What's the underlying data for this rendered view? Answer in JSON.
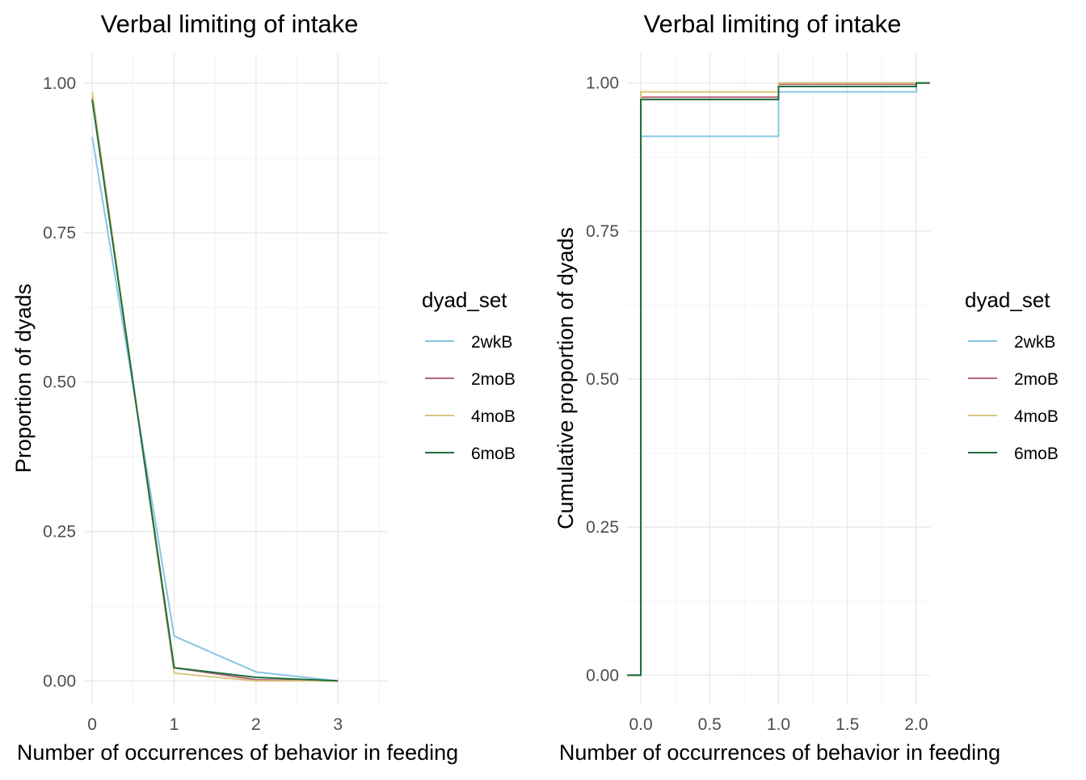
{
  "chart_data": [
    {
      "type": "line",
      "title": "Verbal limiting of intake",
      "xlabel": "Number of occurrences of behavior in feeding",
      "ylabel": "Proportion of dyads",
      "xlim": [
        -0.1,
        3.6
      ],
      "ylim": [
        -0.04,
        1.05
      ],
      "x_ticks": [
        0,
        1,
        2,
        3
      ],
      "y_ticks": [
        0.0,
        0.25,
        0.5,
        0.75,
        1.0
      ],
      "x_tick_labels": [
        "0",
        "1",
        "2",
        "3"
      ],
      "y_tick_labels": [
        "0.00",
        "0.25",
        "0.50",
        "0.75",
        "1.00"
      ],
      "grid": true,
      "legend": {
        "title": "dyad_set",
        "position": "right"
      },
      "x": [
        0,
        1,
        2,
        3
      ],
      "series": [
        {
          "name": "2wkB",
          "color": "#87c6e3",
          "values": [
            0.91,
            0.075,
            0.015,
            0.0
          ]
        },
        {
          "name": "2moB",
          "color": "#b5647a",
          "values": [
            0.976,
            0.022,
            0.002,
            0.0
          ]
        },
        {
          "name": "4moB",
          "color": "#dcc47e",
          "values": [
            0.985,
            0.013,
            0.0,
            0.0
          ]
        },
        {
          "name": "6moB",
          "color": "#1e6e3c",
          "values": [
            0.972,
            0.022,
            0.006,
            0.0
          ]
        }
      ]
    },
    {
      "type": "line",
      "step": true,
      "title": "Verbal limiting of intake",
      "xlabel": "Number of occurrences of behavior in feeding",
      "ylabel": "Cumulative proportion of dyads",
      "xlim": [
        -0.1,
        2.1
      ],
      "ylim": [
        -0.05,
        1.05
      ],
      "x_ticks": [
        0.0,
        0.5,
        1.0,
        1.5,
        2.0
      ],
      "y_ticks": [
        0.0,
        0.25,
        0.5,
        0.75,
        1.0
      ],
      "x_tick_labels": [
        "0.0",
        "0.5",
        "1.0",
        "1.5",
        "2.0"
      ],
      "y_tick_labels": [
        "0.00",
        "0.25",
        "0.50",
        "0.75",
        "1.00"
      ],
      "grid": true,
      "legend": {
        "title": "dyad_set",
        "position": "right"
      },
      "series": [
        {
          "name": "2wkB",
          "color": "#87c6e3",
          "x": [
            -0.1,
            0,
            1,
            2,
            2.1
          ],
          "values": [
            0.0,
            0.91,
            0.985,
            1.0,
            1.0
          ]
        },
        {
          "name": "2moB",
          "color": "#b5647a",
          "x": [
            -0.1,
            0,
            1,
            2,
            2.1
          ],
          "values": [
            0.0,
            0.976,
            0.998,
            1.0,
            1.0
          ]
        },
        {
          "name": "4moB",
          "color": "#dcc47e",
          "x": [
            -0.1,
            0,
            1,
            2,
            2.1
          ],
          "values": [
            0.0,
            0.985,
            1.0,
            1.0,
            1.0
          ]
        },
        {
          "name": "6moB",
          "color": "#1e6e3c",
          "x": [
            -0.1,
            0,
            1,
            2,
            2.1
          ],
          "values": [
            0.0,
            0.972,
            0.994,
            1.0,
            1.0
          ]
        }
      ]
    }
  ]
}
